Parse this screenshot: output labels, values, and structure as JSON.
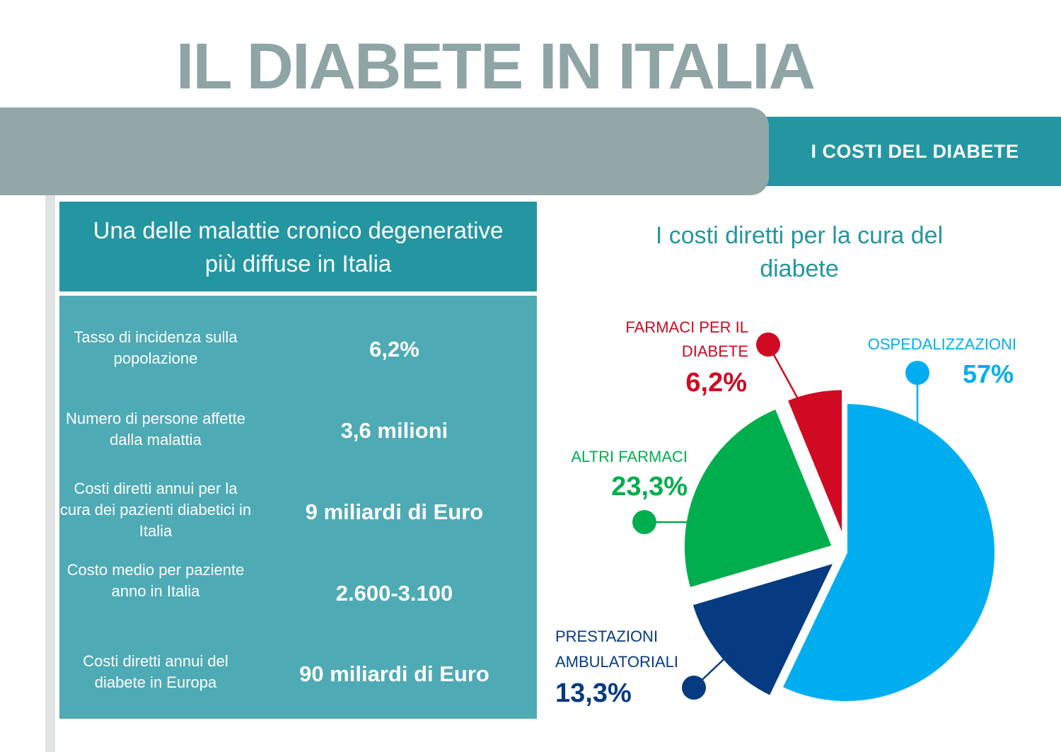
{
  "title": "IL DIABETE IN ITALIA",
  "tab_label": "I COSTI DEL DIABETE",
  "panel": {
    "header": "Una delle malattie cronico degenerative più diffuse in Italia",
    "rows": [
      {
        "label": "Tasso di incidenza sulla popolazione",
        "value": "6,2%"
      },
      {
        "label": "Numero di persone affette dalla malattia",
        "value": "3,6 milioni"
      },
      {
        "label": "Costi diretti annui per la cura dei pazienti diabetici in Italia",
        "value": "9 miliardi di Euro"
      },
      {
        "label": "Costo medio per paziente anno in Italia",
        "value": "2.600-3.100"
      },
      {
        "label": "Costi diretti annui del diabete in Europa",
        "value": "90 miliardi di Euro"
      }
    ]
  },
  "chart_data": {
    "type": "pie",
    "title": "I costi diretti per la cura del diabete",
    "slices": [
      {
        "name": "OSPEDALIZZAZIONI",
        "value": 57,
        "value_label": "57%",
        "color": "#00aeef"
      },
      {
        "name": "PRESTAZIONI AMBULATORIALI",
        "value": 13.3,
        "value_label": "13,3%",
        "color": "#063b82"
      },
      {
        "name": "ALTRI FARMACI",
        "value": 23.3,
        "value_label": "23,3%",
        "color": "#00ae4d"
      },
      {
        "name": "FARMACI PER IL DIABETE",
        "value": 6.2,
        "value_label": "6,2%",
        "color": "#cf0a22"
      }
    ],
    "legend": "callouts"
  }
}
